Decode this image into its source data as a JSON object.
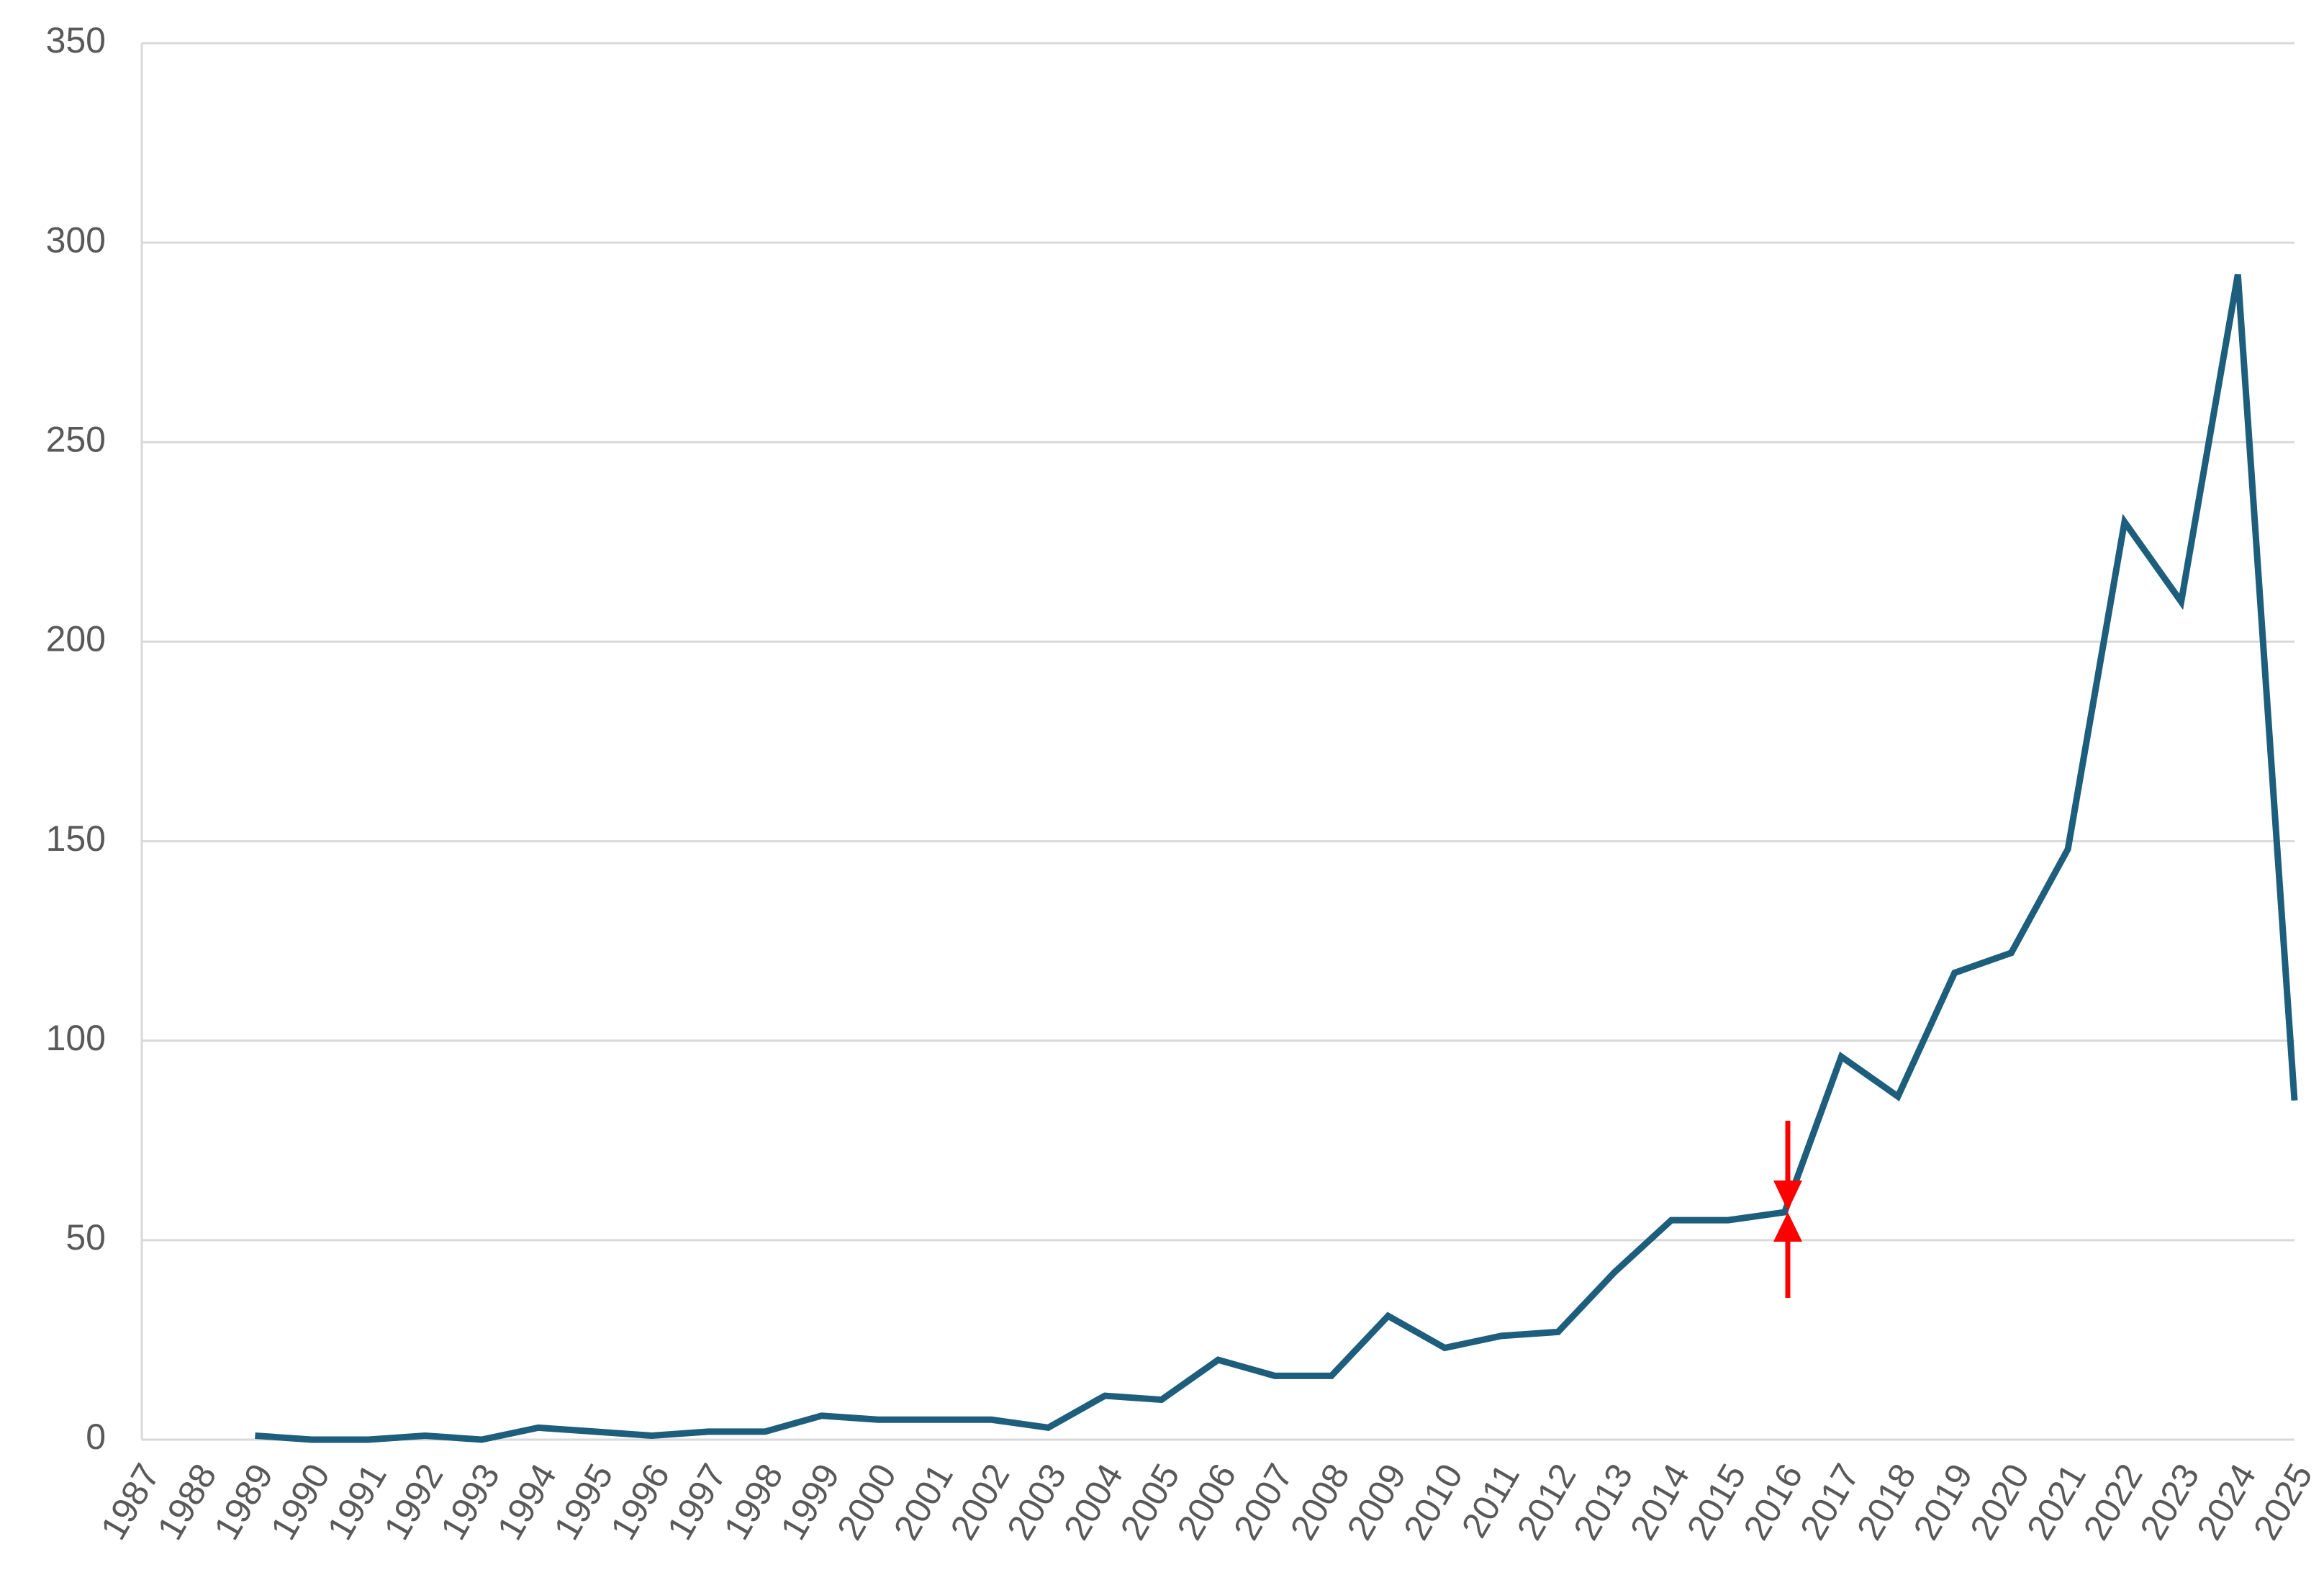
{
  "chart_data": {
    "type": "line",
    "categories": [
      "1987",
      "1988",
      "1989",
      "1990",
      "1991",
      "1992",
      "1993",
      "1994",
      "1995",
      "1996",
      "1997",
      "1998",
      "1999",
      "2000",
      "2001",
      "2002",
      "2003",
      "2004",
      "2005",
      "2006",
      "2007",
      "2008",
      "2009",
      "2010",
      "2011",
      "2012",
      "2013",
      "2014",
      "2015",
      "2016",
      "2017",
      "2018",
      "2019",
      "2020",
      "2021",
      "2022",
      "2023",
      "2024",
      "2025"
    ],
    "values": [
      null,
      null,
      1,
      0,
      0,
      1,
      0,
      3,
      2,
      1,
      2,
      2,
      6,
      5,
      5,
      5,
      3,
      11,
      10,
      20,
      16,
      16,
      31,
      23,
      26,
      27,
      42,
      55,
      55,
      57,
      96,
      86,
      117,
      122,
      148,
      230,
      210,
      292,
      85
    ],
    "color": "#1d5e7c",
    "ylim": [
      0,
      350
    ],
    "yticks": [
      0,
      50,
      100,
      150,
      200,
      250,
      300,
      350
    ],
    "grid": true
  }
}
